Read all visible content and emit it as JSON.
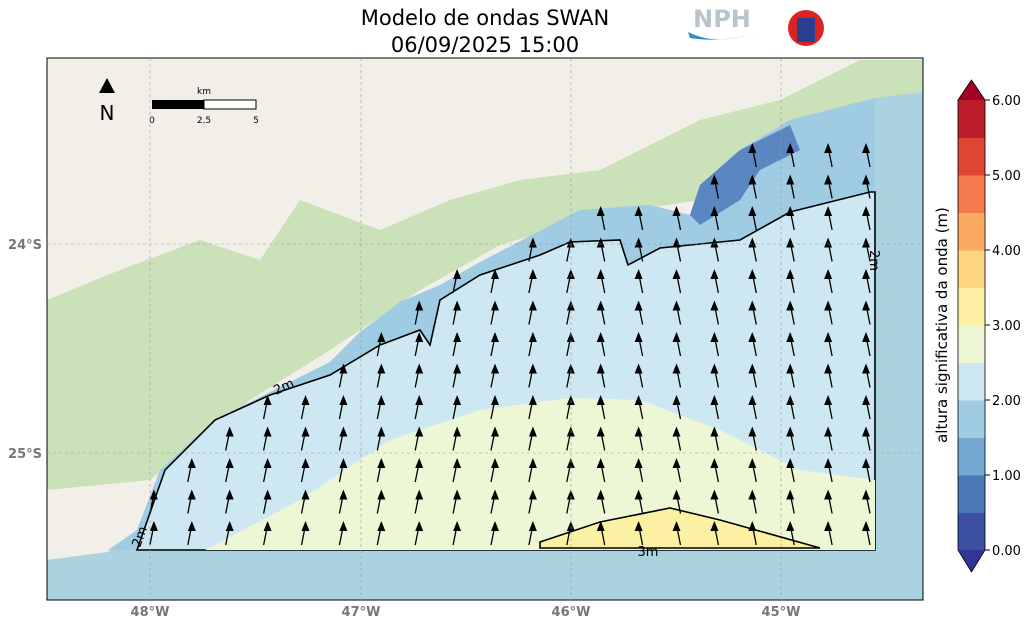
{
  "title": "Modelo de ondas SWAN",
  "subtitle": "06/09/2025 15:00",
  "logo": "NPH",
  "north": "N",
  "scale_bar": {
    "unit": "km",
    "labels": [
      "0",
      "2.5",
      "5"
    ]
  },
  "map": {
    "x_ticks": [
      "48°W",
      "47°W",
      "46°W",
      "45°W"
    ],
    "y_ticks": [
      "24°S",
      "25°S"
    ],
    "contour_labels": [
      "2m",
      "2m",
      "2m",
      "3m"
    ]
  },
  "colorbar": {
    "label": "altura significativa da onda (m)",
    "ticks": [
      {
        "value": 0,
        "label": "0.00"
      },
      {
        "value": 1,
        "label": "1.00"
      },
      {
        "value": 2,
        "label": "2.00"
      },
      {
        "value": 3,
        "label": "3.00"
      },
      {
        "value": 4,
        "label": "4.00"
      },
      {
        "value": 5,
        "label": "5.00"
      },
      {
        "value": 6,
        "label": "6.00"
      }
    ],
    "colors": [
      "#3b50a3",
      "#4a78b6",
      "#74a7d0",
      "#9fcbe3",
      "#cde8f2",
      "#eef7d5",
      "#fcf0a3",
      "#fdd580",
      "#fcaa61",
      "#f27a4c",
      "#df4631",
      "#bd1c2a"
    ],
    "under_color": "#313695",
    "over_color": "#a50026"
  }
}
